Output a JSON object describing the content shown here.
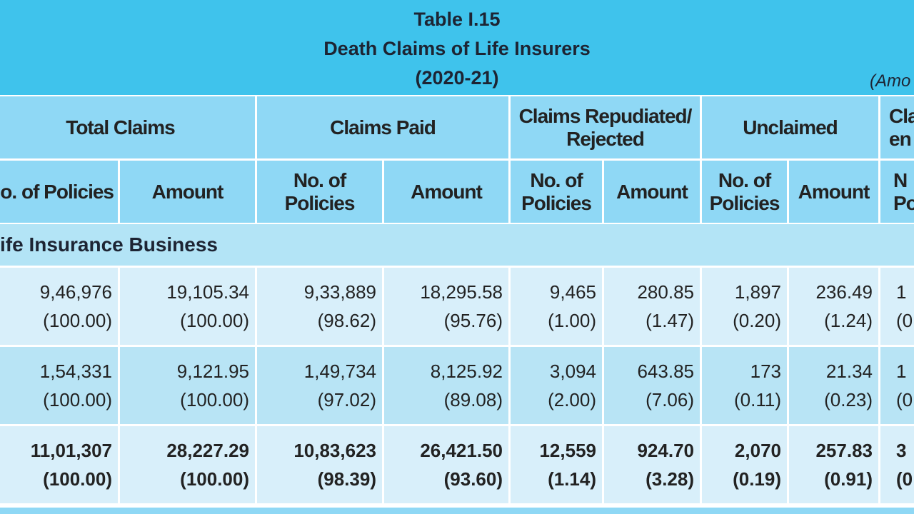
{
  "header": {
    "title": "Table I.15",
    "subtitle": "Death Claims of Life Insurers",
    "period": "(2020-21)",
    "note": "(Amo"
  },
  "table": {
    "group_headers": [
      "Total Claims",
      "Claims Paid",
      "Claims Repudiated/\nRejected",
      "Unclaimed",
      "Cla\nen"
    ],
    "column_headers": [
      "o. of Policies",
      "Amount",
      "No. of\nPolicies",
      "Amount",
      "No. of\nPolicies",
      "Amount",
      "No. of\nPolicies",
      "Amount",
      "N\nPo"
    ],
    "section": "ife Insurance Business",
    "rows": [
      [
        [
          "9,46,976",
          "(100.00)"
        ],
        [
          "19,105.34",
          "(100.00)"
        ],
        [
          "9,33,889",
          "(98.62)"
        ],
        [
          "18,295.58",
          "(95.76)"
        ],
        [
          "9,465",
          "(1.00)"
        ],
        [
          "280.85",
          "(1.47)"
        ],
        [
          "1,897",
          "(0.20)"
        ],
        [
          "236.49",
          "(1.24)"
        ],
        [
          "1",
          "(0"
        ]
      ],
      [
        [
          "1,54,331",
          "(100.00)"
        ],
        [
          "9,121.95",
          "(100.00)"
        ],
        [
          "1,49,734",
          "(97.02)"
        ],
        [
          "8,125.92",
          "(89.08)"
        ],
        [
          "3,094",
          "(2.00)"
        ],
        [
          "643.85",
          "(7.06)"
        ],
        [
          "173",
          "(0.11)"
        ],
        [
          "21.34",
          "(0.23)"
        ],
        [
          "1",
          "(0"
        ]
      ],
      [
        [
          "11,01,307",
          "(100.00)"
        ],
        [
          "28,227.29",
          "(100.00)"
        ],
        [
          "10,83,623",
          "(98.39)"
        ],
        [
          "26,421.50",
          "(93.60)"
        ],
        [
          "12,559",
          "(1.14)"
        ],
        [
          "924.70",
          "(3.28)"
        ],
        [
          "2,070",
          "(0.19)"
        ],
        [
          "257.83",
          "(0.91)"
        ],
        [
          "3",
          "(0"
        ]
      ]
    ]
  }
}
